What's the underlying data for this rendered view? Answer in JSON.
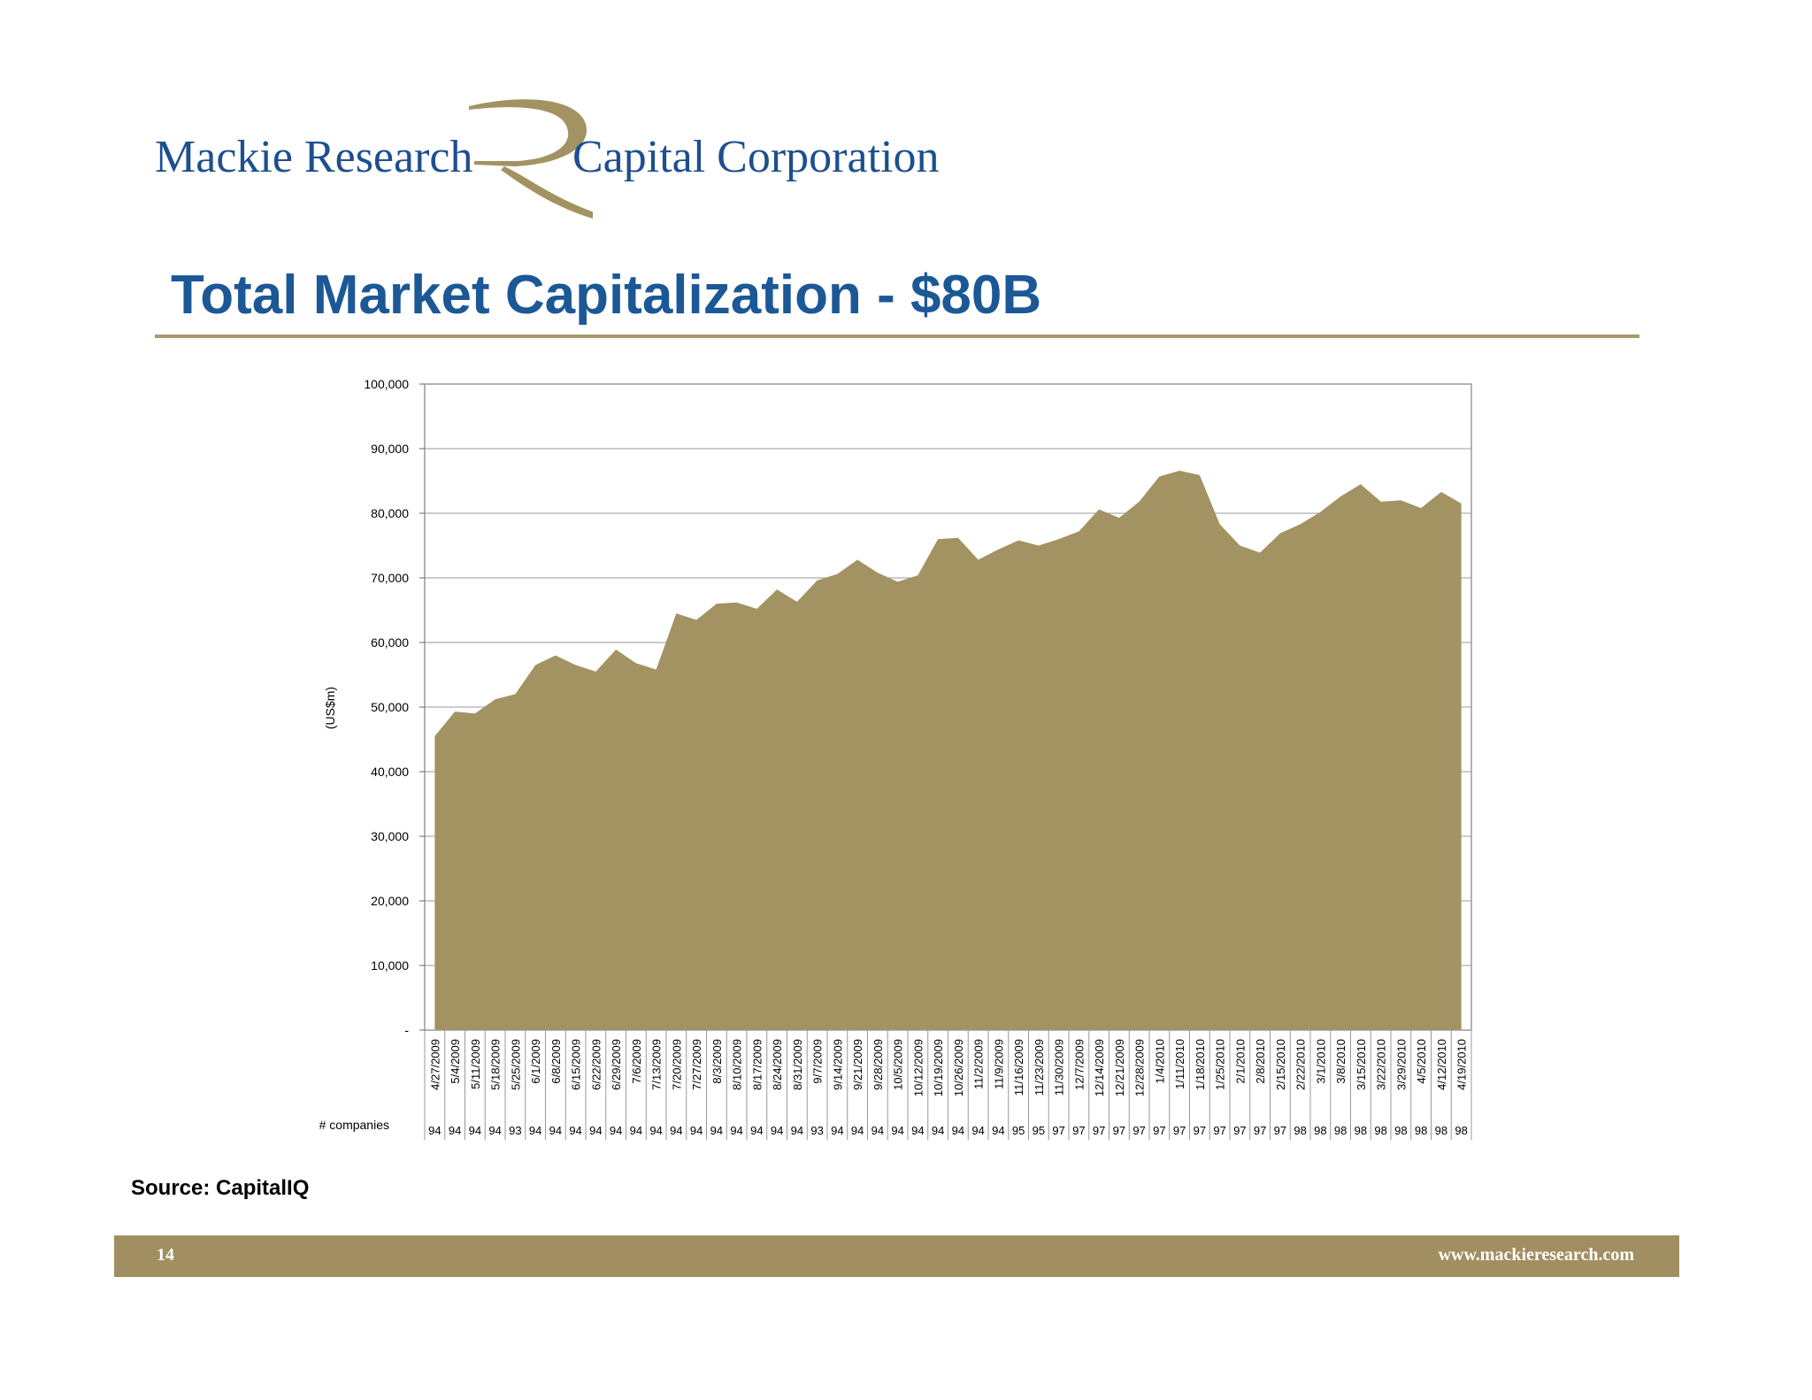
{
  "logo": {
    "left_text": "Mackie Research",
    "right_text": "Capital Corporation",
    "mark": "R-swoosh-logo"
  },
  "title": "Total Market Capitalization - $80B",
  "colors": {
    "accent": "#a28f61",
    "area": "#a39262",
    "title": "#1c5896",
    "logo_text": "#1d4f8f"
  },
  "chart_data": {
    "type": "area",
    "title": "",
    "xlabel": "",
    "ylabel": "(US$m)",
    "ylim": [
      0,
      100000
    ],
    "yticks": [
      0,
      10000,
      20000,
      30000,
      40000,
      50000,
      60000,
      70000,
      80000,
      90000,
      100000
    ],
    "ytick_labels": [
      "-",
      "10,000",
      "20,000",
      "30,000",
      "40,000",
      "50,000",
      "60,000",
      "70,000",
      "80,000",
      "90,000",
      "100,000"
    ],
    "grid": true,
    "x": [
      "4/27/2009",
      "5/4/2009",
      "5/11/2009",
      "5/18/2009",
      "5/25/2009",
      "6/1/2009",
      "6/8/2009",
      "6/15/2009",
      "6/22/2009",
      "6/29/2009",
      "7/6/2009",
      "7/13/2009",
      "7/20/2009",
      "7/27/2009",
      "8/3/2009",
      "8/10/2009",
      "8/17/2009",
      "8/24/2009",
      "8/31/2009",
      "9/7/2009",
      "9/14/2009",
      "9/21/2009",
      "9/28/2009",
      "10/5/2009",
      "10/12/2009",
      "10/19/2009",
      "10/26/2009",
      "11/2/2009",
      "11/9/2009",
      "11/16/2009",
      "11/23/2009",
      "11/30/2009",
      "12/7/2009",
      "12/14/2009",
      "12/21/2009",
      "12/28/2009",
      "1/4/2010",
      "1/11/2010",
      "1/18/2010",
      "1/25/2010",
      "2/1/2010",
      "2/8/2010",
      "2/15/2010",
      "2/22/2010",
      "3/1/2010",
      "3/8/2010",
      "3/15/2010",
      "3/22/2010",
      "3/29/2010",
      "4/5/2010",
      "4/12/2010",
      "4/19/2010"
    ],
    "series": [
      {
        "values": [
          45500,
          49300,
          49000,
          51200,
          52000,
          56500,
          58000,
          56500,
          55500,
          58900,
          56800,
          55800,
          64500,
          63500,
          66000,
          66200,
          65200,
          68200,
          66300,
          69600,
          70600,
          72800,
          70800,
          69400,
          70400,
          76000,
          76200,
          72800,
          74400,
          75800,
          75000,
          76000,
          77200,
          80600,
          79300,
          81800,
          85700,
          86600,
          85900,
          78300,
          75000,
          73900,
          76900,
          78300,
          80200,
          82600,
          84500,
          81800,
          82000,
          80800,
          83300,
          81500
        ]
      }
    ],
    "row_label": "# companies",
    "companies": [
      94,
      94,
      94,
      94,
      93,
      94,
      94,
      94,
      94,
      94,
      94,
      94,
      94,
      94,
      94,
      94,
      94,
      94,
      94,
      93,
      94,
      94,
      94,
      94,
      94,
      94,
      94,
      94,
      94,
      95,
      95,
      97,
      97,
      97,
      97,
      97,
      97,
      97,
      97,
      97,
      97,
      97,
      97,
      98,
      98,
      98,
      98,
      98,
      98,
      98,
      98,
      98
    ]
  },
  "source": "Source: CapitalIQ",
  "footer": {
    "page_number": "14",
    "website": "www.mackieresearch.com"
  }
}
